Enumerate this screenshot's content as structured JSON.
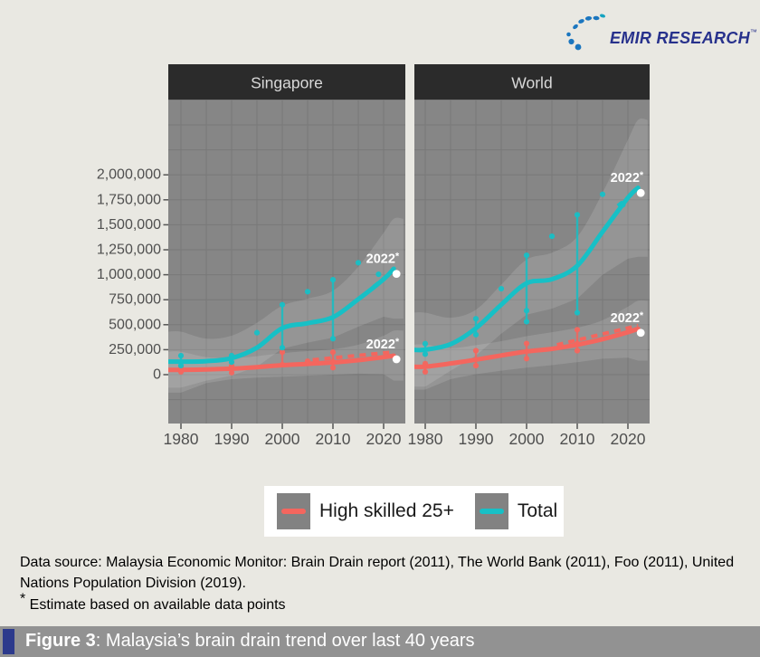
{
  "logo": {
    "text": "EMIR RESEARCH",
    "tm": "™"
  },
  "legend": {
    "items": [
      {
        "label": "High skilled 25+",
        "color": "#f4665e"
      },
      {
        "label": "Total",
        "color": "#17c0c6"
      }
    ]
  },
  "notes": {
    "data_source": "Data source: Malaysia Economic Monitor: Brain Drain report (2011), The World Bank (2011), Foo (2011), United Nations Population Division (2019).",
    "estimate_mark": "*",
    "estimate_text": " Estimate based on available data points"
  },
  "caption": {
    "label": "Figure 3",
    "rest": ": Malaysia’s brain drain trend over last 40 years"
  },
  "chart_data": {
    "type": "line",
    "title": "Malaysia’s brain drain trend over last 40 years",
    "facets": [
      "Singapore",
      "World"
    ],
    "legend_position": "bottom",
    "grid": true,
    "panel_bg": "#868686",
    "strip_bg": "#2b2b2b",
    "grid_color": "#787878",
    "band_color": "rgba(255,255,255,0.13)",
    "axis_text_color": "#4f4f4f",
    "x": {
      "ticks": [
        1980,
        1990,
        2000,
        2010,
        2020
      ],
      "tick_labels": [
        "1980",
        "1990",
        "2000",
        "2010",
        "2020"
      ],
      "grid_step_years": 5,
      "range": [
        1977.5,
        2024.5
      ]
    },
    "y": {
      "ticks": [
        0,
        250000,
        500000,
        750000,
        1000000,
        1250000,
        1500000,
        1750000,
        2000000
      ],
      "tick_labels": [
        "0",
        "250,000",
        "500,000",
        "750,000",
        "1,000,000",
        "1,250,000",
        "1,500,000",
        "1,750,000",
        "2,000,000"
      ],
      "grid_step": 250000,
      "range": [
        -490000,
        2750000
      ]
    },
    "panels": [
      {
        "name": "Singapore",
        "series": [
          {
            "name": "High skilled 25+",
            "color": "#f4665e",
            "line": {
              "years": [
                1980,
                1985,
                1990,
                1995,
                2000,
                2005,
                2010,
                2015,
                2020,
                2022
              ],
              "values": [
                48000,
                52000,
                60000,
                75000,
                95000,
                108000,
                122000,
                145000,
                175000,
                190000
              ]
            },
            "band": {
              "upper": [
                230000,
                175000,
                165000,
                185000,
                215000,
                235000,
                255000,
                300000,
                390000,
                440000
              ],
              "lower": [
                -180000,
                -85000,
                -45000,
                -30000,
                -20000,
                -10000,
                0,
                10000,
                5000,
                -60000
              ]
            },
            "points": [
              [
                1980,
                72000
              ],
              [
                1980,
                28000
              ],
              [
                1990,
                90000
              ],
              [
                1990,
                20000
              ],
              [
                2000,
                225000
              ],
              [
                2000,
                100000
              ],
              [
                2005,
                135000
              ],
              [
                2010,
                225000
              ],
              [
                2010,
                130000
              ],
              [
                2010,
                70000
              ]
            ],
            "estimate": {
              "year": 2022,
              "value": 190000,
              "label": "2022*",
              "dash_from_year": 2006,
              "dash_from_value": 112000
            }
          },
          {
            "name": "Total",
            "color": "#17c0c6",
            "line": {
              "years": [
                1980,
                1985,
                1990,
                1995,
                2000,
                2005,
                2010,
                2015,
                2020,
                2022
              ],
              "values": [
                130000,
                135000,
                165000,
                270000,
                465000,
                515000,
                575000,
                755000,
                955000,
                1060000
              ]
            },
            "band": {
              "upper": [
                430000,
                360000,
                390000,
                520000,
                690000,
                760000,
                840000,
                1080000,
                1420000,
                1560000
              ],
              "lower": [
                -130000,
                -60000,
                -10000,
                80000,
                260000,
                320000,
                370000,
                480000,
                580000,
                560000
              ]
            },
            "points": [
              [
                1980,
                190000
              ],
              [
                1980,
                90000
              ],
              [
                1990,
                190000
              ],
              [
                1990,
                125000
              ],
              [
                1995,
                420000
              ],
              [
                2000,
                700000
              ],
              [
                2000,
                270000
              ],
              [
                2005,
                830000
              ],
              [
                2010,
                950000
              ],
              [
                2010,
                360000
              ],
              [
                2015,
                1120000
              ],
              [
                2019,
                1005000
              ]
            ],
            "estimate": {
              "year": 2022,
              "value": 1045000,
              "label": "2022*",
              "dash_from_year": 2018,
              "dash_from_value": 880000
            }
          }
        ]
      },
      {
        "name": "World",
        "series": [
          {
            "name": "High skilled 25+",
            "color": "#f4665e",
            "line": {
              "years": [
                1980,
                1985,
                1990,
                1995,
                2000,
                2005,
                2010,
                2015,
                2020,
                2022
              ],
              "values": [
                80000,
                112000,
                150000,
                192000,
                232000,
                258000,
                300000,
                355000,
                425000,
                460000
              ]
            },
            "band": {
              "upper": [
                300000,
                265000,
                295000,
                335000,
                385000,
                425000,
                470000,
                545000,
                680000,
                740000
              ],
              "lower": [
                -150000,
                -45000,
                5000,
                40000,
                70000,
                95000,
                125000,
                160000,
                170000,
                140000
              ]
            },
            "points": [
              [
                1980,
                110000
              ],
              [
                1980,
                28000
              ],
              [
                1990,
                240000
              ],
              [
                1990,
                90000
              ],
              [
                2000,
                312000
              ],
              [
                2000,
                160000
              ],
              [
                2010,
                450000
              ],
              [
                2010,
                310000
              ],
              [
                2010,
                240000
              ]
            ],
            "estimate": {
              "year": 2022,
              "value": 455000,
              "label": "2022*",
              "dash_from_year": 2006,
              "dash_from_value": 262000
            }
          },
          {
            "name": "Total",
            "color": "#17c0c6",
            "line": {
              "years": [
                1980,
                1985,
                1990,
                1995,
                2000,
                2005,
                2010,
                2015,
                2020,
                2022
              ],
              "values": [
                250000,
                305000,
                465000,
                700000,
                915000,
                955000,
                1090000,
                1430000,
                1770000,
                1870000
              ]
            },
            "band": {
              "upper": [
                620000,
                570000,
                650000,
                900000,
                1150000,
                1220000,
                1380000,
                1820000,
                2350000,
                2550000
              ],
              "lower": [
                -120000,
                40000,
                190000,
                410000,
                600000,
                660000,
                760000,
                1000000,
                1160000,
                1180000
              ]
            },
            "points": [
              [
                1980,
                310000
              ],
              [
                1980,
                205000
              ],
              [
                1990,
                560000
              ],
              [
                1990,
                400000
              ],
              [
                1995,
                860000
              ],
              [
                2000,
                1195000
              ],
              [
                2000,
                640000
              ],
              [
                2000,
                530000
              ],
              [
                2005,
                1385000
              ],
              [
                2010,
                1600000
              ],
              [
                2010,
                620000
              ],
              [
                2015,
                1805000
              ],
              [
                2019,
                1700000
              ]
            ],
            "estimate": {
              "year": 2022,
              "value": 1855000,
              "label": "2022*",
              "dash_from_year": 2018,
              "dash_from_value": 1690000
            }
          }
        ]
      }
    ]
  }
}
